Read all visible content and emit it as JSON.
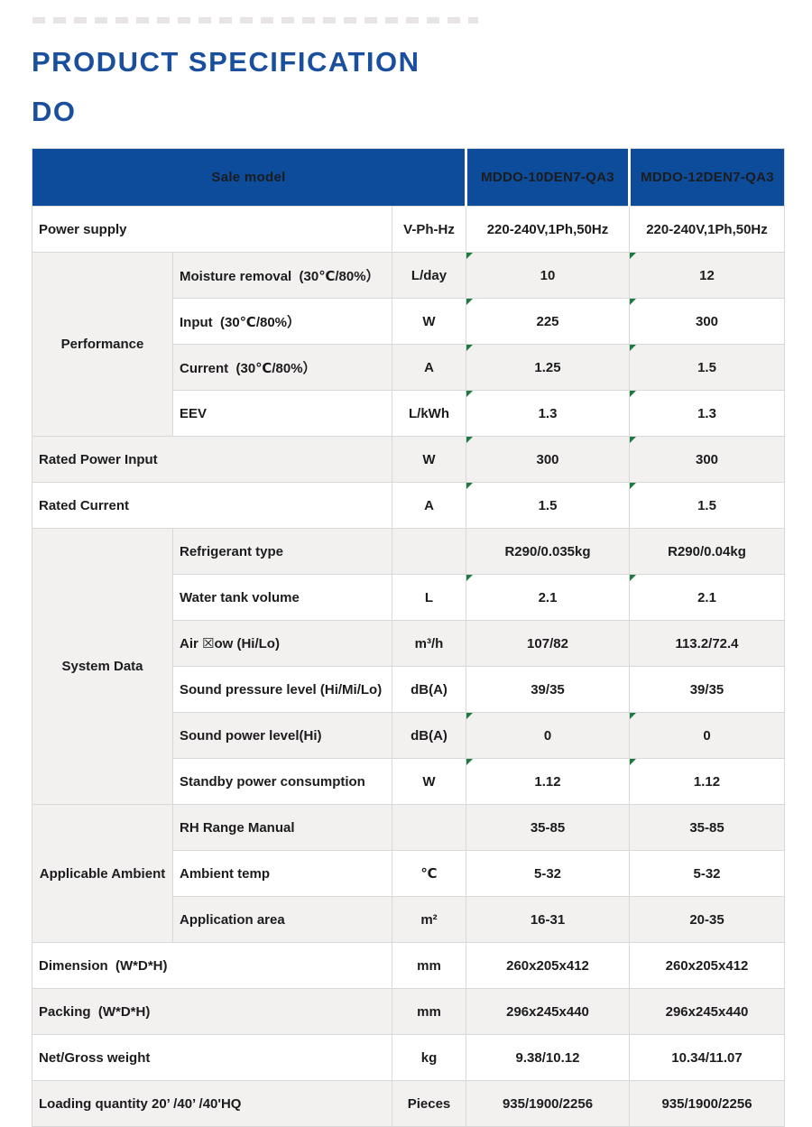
{
  "page": {
    "title_line1": "PRODUCT SPECIFICATION",
    "title_line2": "DO"
  },
  "colors": {
    "header_blue": "#0d4c9b",
    "title_blue": "#1a4f9e",
    "row_shade_gray": "#f2f1f0",
    "grid_line_gray": "#d8d8d8",
    "flag_green": "#1f7a40",
    "text_black": "#1c1c1e"
  },
  "icons": {
    "green_corner_flag": "excel-style green triangle marker in top-left corner of value cells"
  },
  "table": {
    "header": {
      "sale_model_label": "Sale model",
      "models": [
        "MDDO-10DEN7-QA3",
        "MDDO-12DEN7-QA3"
      ]
    },
    "rows": [
      {
        "span": "full",
        "label": "Power supply",
        "unit": "V-Ph-Hz",
        "values": [
          "220-240V,1Ph,50Hz",
          "220-240V,1Ph,50Hz"
        ],
        "shade": false,
        "flag": false
      },
      {
        "span": "sub",
        "group": "Performance",
        "group_span": 4,
        "label": "Moisture removal  (30℃/80%）",
        "unit": "L/day",
        "values": [
          "10",
          "12"
        ],
        "shade": true,
        "flag": true
      },
      {
        "span": "sub",
        "label": "Input  (30℃/80%）",
        "unit": "W",
        "values": [
          "225",
          "300"
        ],
        "shade": false,
        "flag": true
      },
      {
        "span": "sub",
        "label": "Current  (30℃/80%）",
        "unit": "A",
        "values": [
          "1.25",
          "1.5"
        ],
        "shade": true,
        "flag": true
      },
      {
        "span": "sub",
        "label": "EEV",
        "unit": "L/kWh",
        "values": [
          "1.3",
          "1.3"
        ],
        "shade": false,
        "flag": true
      },
      {
        "span": "full",
        "label": "Rated Power Input",
        "unit": "W",
        "values": [
          "300",
          "300"
        ],
        "shade": true,
        "flag": true
      },
      {
        "span": "full",
        "label": "Rated Current",
        "unit": "A",
        "values": [
          "1.5",
          "1.5"
        ],
        "shade": false,
        "flag": true
      },
      {
        "span": "sub",
        "group": "System Data",
        "group_span": 6,
        "label": "Refrigerant type",
        "unit": "",
        "values": [
          "R290/0.035kg",
          "R290/0.04kg"
        ],
        "shade": true,
        "flag": false
      },
      {
        "span": "sub",
        "label": "Water tank volume",
        "unit": "L",
        "values": [
          "2.1",
          "2.1"
        ],
        "shade": false,
        "flag": true
      },
      {
        "span": "sub",
        "label": "Air ☒ow (Hi/Lo)",
        "unit": "m³/h",
        "values": [
          "107/82",
          "113.2/72.4"
        ],
        "shade": true,
        "flag": false
      },
      {
        "span": "sub",
        "label": "Sound pressure level (Hi/Mi/Lo)",
        "unit": "dB(A)",
        "values": [
          "39/35",
          "39/35"
        ],
        "shade": false,
        "flag": false
      },
      {
        "span": "sub",
        "label": "Sound power level(Hi)",
        "unit": "dB(A)",
        "values": [
          "0",
          "0"
        ],
        "shade": true,
        "flag": true
      },
      {
        "span": "sub",
        "label": "Standby power consumption",
        "unit": "W",
        "values": [
          "1.12",
          "1.12"
        ],
        "shade": false,
        "flag": true
      },
      {
        "span": "sub",
        "group": "Applicable Ambient",
        "group_span": 3,
        "label": "RH Range Manual",
        "unit": "",
        "values": [
          "35-85",
          "35-85"
        ],
        "shade": true,
        "flag": false
      },
      {
        "span": "sub",
        "label": "Ambient temp",
        "unit": "℃",
        "values": [
          "5-32",
          "5-32"
        ],
        "shade": false,
        "flag": false
      },
      {
        "span": "sub",
        "label": "Application area",
        "unit": "m²",
        "values": [
          "16-31",
          "20-35"
        ],
        "shade": true,
        "flag": false
      },
      {
        "span": "full",
        "label": "Dimension  (W*D*H)",
        "unit": "mm",
        "values": [
          "260x205x412",
          "260x205x412"
        ],
        "shade": false,
        "flag": false
      },
      {
        "span": "full",
        "label": "Packing  (W*D*H)",
        "unit": "mm",
        "values": [
          "296x245x440",
          "296x245x440"
        ],
        "shade": true,
        "flag": false
      },
      {
        "span": "full",
        "label": "Net/Gross weight",
        "unit": "kg",
        "values": [
          "9.38/10.12",
          "10.34/11.07"
        ],
        "shade": false,
        "flag": false
      },
      {
        "span": "full",
        "label": "Loading quantity 20’ /40’ /40'HQ",
        "unit": "Pieces",
        "values": [
          "935/1900/2256",
          "935/1900/2256"
        ],
        "shade": true,
        "flag": false
      }
    ]
  }
}
